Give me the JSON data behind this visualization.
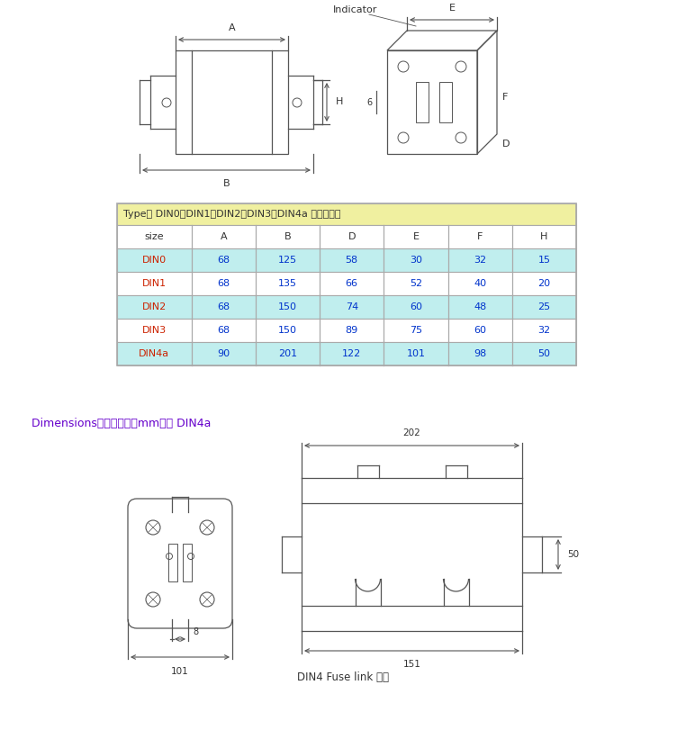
{
  "bg_color": "#ffffff",
  "table_header_bg": "#f0f0a0",
  "table_row_bg_odd": "#c0eeee",
  "table_row_bg_even": "#ffffff",
  "table_border": "#aaaaaa",
  "table_title": "Type： DIN0、DIN1、DIN2、DIN3、DIN4a 尺寸示意图",
  "table_headers": [
    "size",
    "A",
    "B",
    "D",
    "E",
    "F",
    "H"
  ],
  "table_data": [
    [
      "DIN0",
      "68",
      "125",
      "58",
      "30",
      "32",
      "15"
    ],
    [
      "DIN1",
      "68",
      "135",
      "66",
      "52",
      "40",
      "20"
    ],
    [
      "DIN2",
      "68",
      "150",
      "74",
      "60",
      "48",
      "25"
    ],
    [
      "DIN3",
      "68",
      "150",
      "89",
      "75",
      "60",
      "32"
    ],
    [
      "DIN4a",
      "90",
      "201",
      "122",
      "101",
      "98",
      "50"
    ]
  ],
  "dim_label": "Dimensions安装尺寸图（mm）： DIN4a",
  "dim_label_color": "#6600cc",
  "bottom_label": "DIN4 Fuse link 熔体",
  "text_color": "#333333",
  "line_color": "#555555",
  "size_col_color": "#cc2200",
  "num_col_color": "#0033cc",
  "dim_202": "202",
  "dim_151": "151",
  "dim_101": "101",
  "dim_50": "50",
  "dim_8": "8"
}
